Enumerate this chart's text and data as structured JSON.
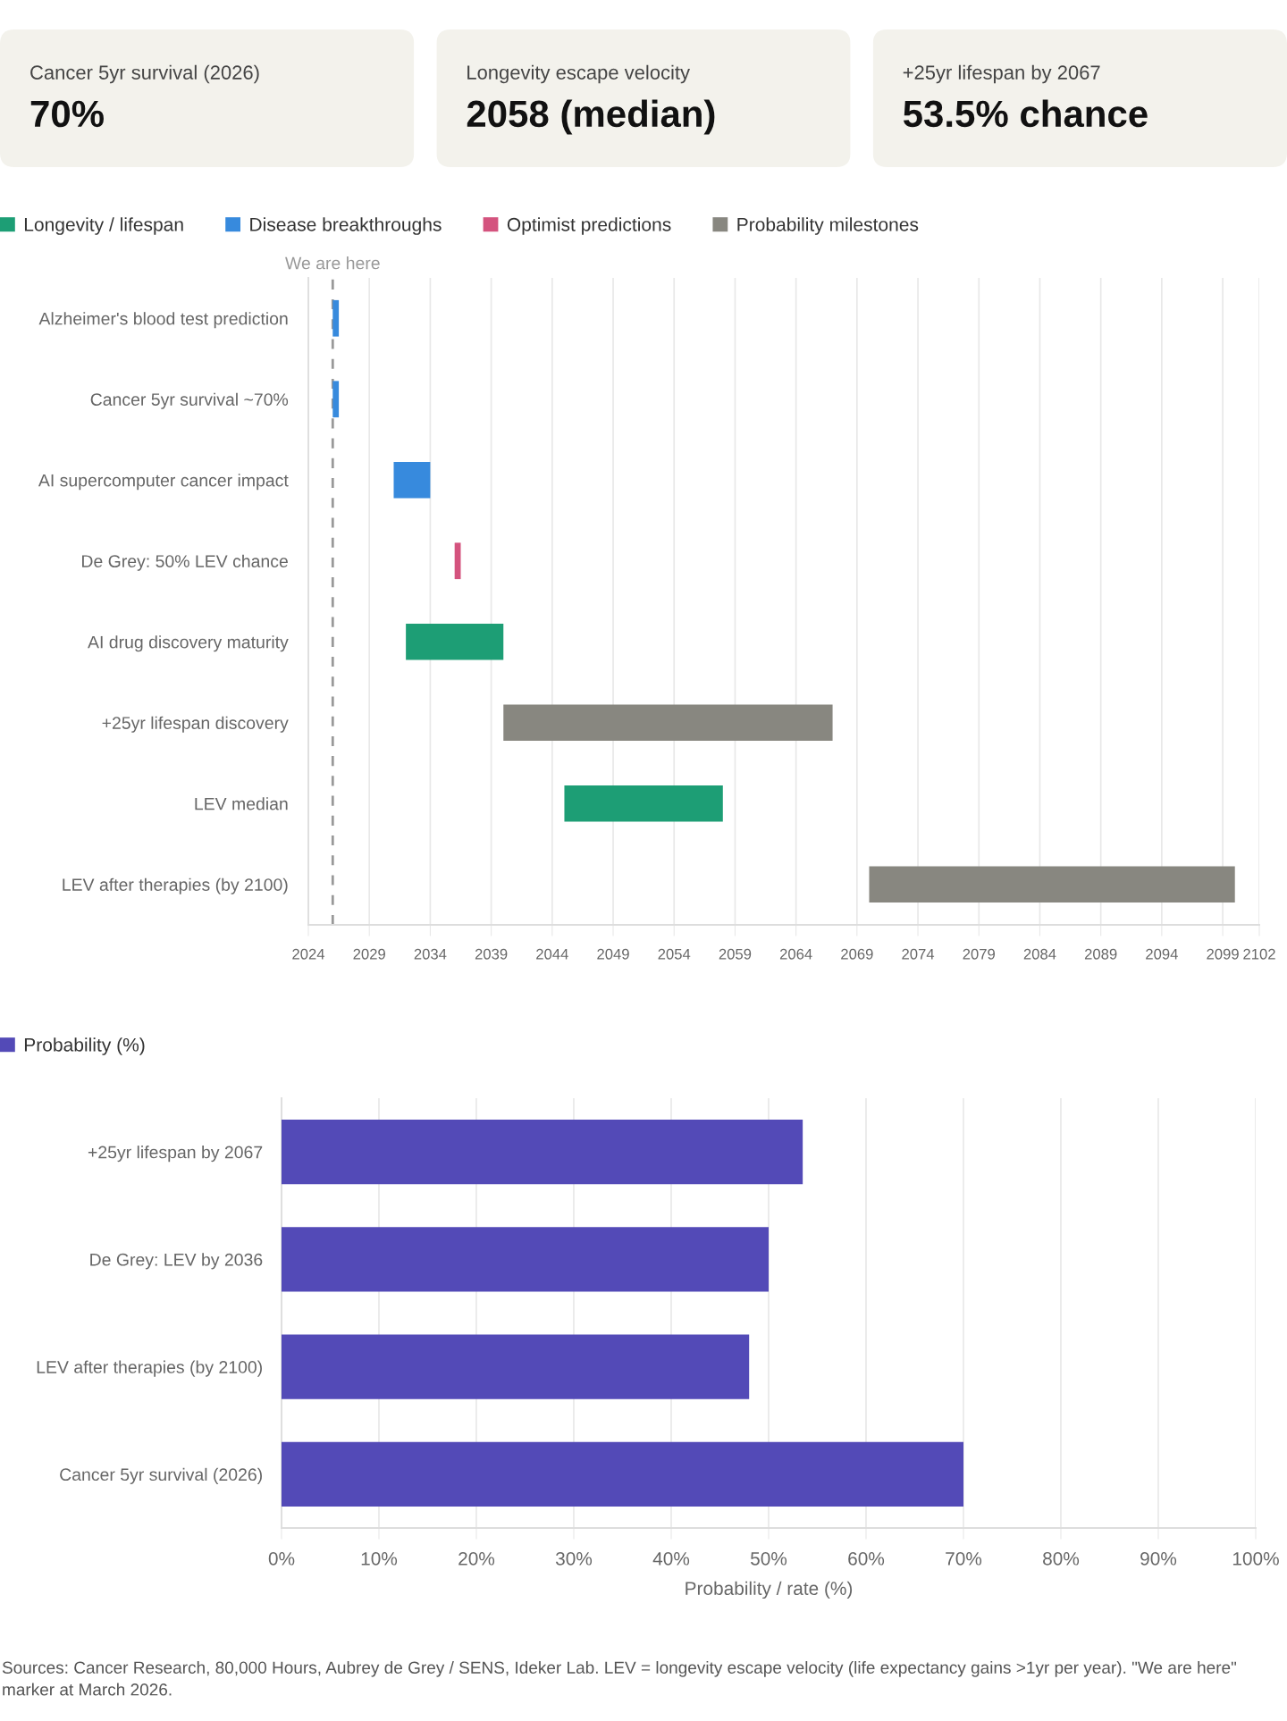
{
  "chart_data": [
    {
      "type": "other",
      "title": "Cancer 5yr survival (2026)",
      "annotations": [
        "70%"
      ]
    },
    {
      "type": "other",
      "title": "Longevity escape velocity",
      "annotations": [
        "2058 (median)"
      ]
    },
    {
      "type": "other",
      "title": "+25yr lifespan by 2067",
      "annotations": [
        "53.5% chance"
      ]
    },
    {
      "type": "bar",
      "orientation": "horizontal",
      "categories": [
        "Alzheimer's blood test prediction",
        "Cancer 5yr survival ~70%",
        "AI supercomputer cancer impact",
        "De Grey: 50% LEV chance",
        "AI drug discovery maturity",
        "+25yr lifespan discovery",
        "LEV median",
        "LEV after therapies (by 2100)"
      ],
      "series": [
        {
          "name": "Longevity / lifespan",
          "color": "#1d9e75",
          "base": [
            null,
            null,
            null,
            null,
            2032,
            null,
            2045,
            null
          ],
          "values": [
            null,
            null,
            null,
            null,
            8,
            null,
            13,
            null
          ]
        },
        {
          "name": "Disease breakthroughs",
          "color": "#378add",
          "base": [
            2026,
            2026,
            2031,
            null,
            null,
            null,
            null,
            null
          ],
          "values": [
            0.5,
            0.5,
            3,
            null,
            null,
            null,
            null,
            null
          ]
        },
        {
          "name": "Optimist predictions",
          "color": "#d4537e",
          "base": [
            null,
            null,
            null,
            2036,
            null,
            null,
            null,
            null
          ],
          "values": [
            null,
            null,
            null,
            0.5,
            null,
            null,
            null,
            null
          ]
        },
        {
          "name": "Probability milestones",
          "color": "#888780",
          "base": [
            null,
            null,
            null,
            null,
            null,
            2040,
            null,
            2070
          ],
          "values": [
            null,
            null,
            null,
            null,
            null,
            27,
            null,
            30
          ]
        }
      ],
      "xlim": [
        2024,
        2102
      ],
      "xticks": [
        2024,
        2029,
        2034,
        2039,
        2044,
        2049,
        2054,
        2059,
        2064,
        2069,
        2074,
        2079,
        2084,
        2089,
        2094,
        2099,
        2102
      ],
      "grid": "x",
      "legend": "top left",
      "ref_lines": [
        {
          "axis": "x",
          "value": 2026,
          "label": "We are here",
          "color": "#999999",
          "line_style": "dashed"
        }
      ]
    },
    {
      "type": "bar",
      "orientation": "horizontal",
      "categories": [
        "+25yr lifespan by 2067",
        "De Grey: LEV by 2036",
        "LEV after therapies (by 2100)",
        "Cancer 5yr survival (2026)"
      ],
      "series": [
        {
          "name": "Probability (%)",
          "color": "#534ab7",
          "values": [
            53.5,
            50,
            48,
            70
          ]
        }
      ],
      "xlim": [
        0,
        100
      ],
      "xticks": [
        {
          "value": 0,
          "label": "0%"
        },
        {
          "value": 10,
          "label": "10%"
        },
        {
          "value": 20,
          "label": "20%"
        },
        {
          "value": 30,
          "label": "30%"
        },
        {
          "value": 40,
          "label": "40%"
        },
        {
          "value": 50,
          "label": "50%"
        },
        {
          "value": 60,
          "label": "60%"
        },
        {
          "value": 70,
          "label": "70%"
        },
        {
          "value": 80,
          "label": "80%"
        },
        {
          "value": 90,
          "label": "90%"
        },
        {
          "value": 100,
          "label": "100%"
        }
      ],
      "xlabel": "Probability / rate (%)",
      "grid": "x",
      "legend": "top left",
      "annotations": [
        "Sources: Cancer Research, 80,000 Hours, Aubrey de Grey / SENS, Ideker Lab. LEV = longevity escape velocity (life expectancy gains >1yr per year). \"We are here\" marker at March 2026."
      ]
    }
  ]
}
